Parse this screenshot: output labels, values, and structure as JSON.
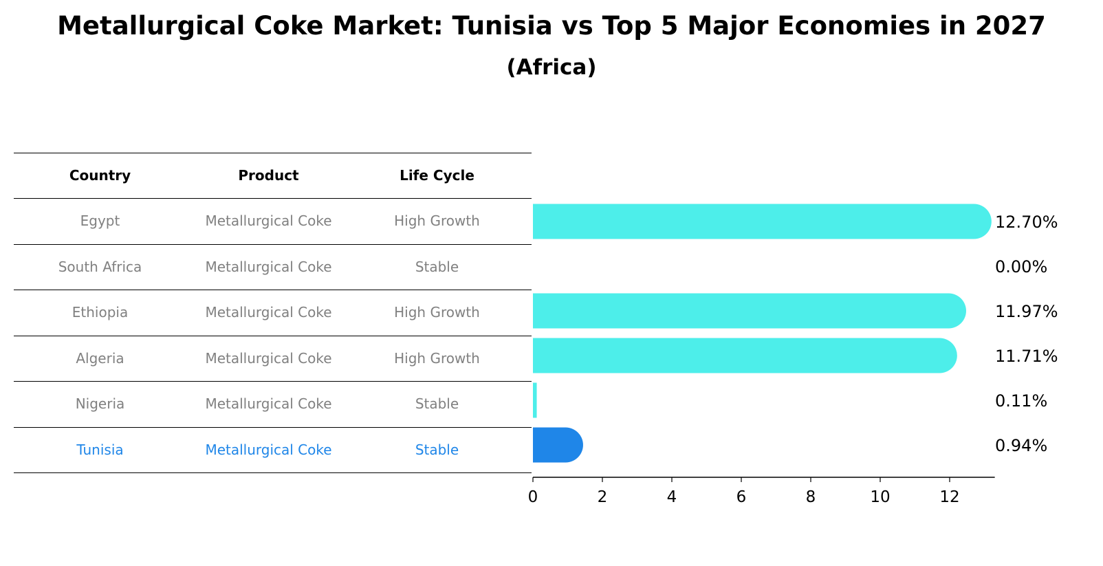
{
  "title": "Metallurgical Coke Market: Tunisia vs Top 5 Major Economies in 2027",
  "subtitle": "(Africa)",
  "table": {
    "headers": [
      "Country",
      "Product",
      "Life Cycle"
    ],
    "rows": [
      {
        "country": "Egypt",
        "product": "Metallurgical Coke",
        "life_cycle": "High Growth"
      },
      {
        "country": "South Africa",
        "product": "Metallurgical Coke",
        "life_cycle": "Stable"
      },
      {
        "country": "Ethiopia",
        "product": "Metallurgical Coke",
        "life_cycle": "High Growth"
      },
      {
        "country": "Algeria",
        "product": "Metallurgical Coke",
        "life_cycle": "High Growth"
      },
      {
        "country": "Nigeria",
        "product": "Metallurgical Coke",
        "life_cycle": "Stable"
      },
      {
        "country": "Tunisia",
        "product": "Metallurgical Coke",
        "life_cycle": "Stable"
      }
    ]
  },
  "colors": {
    "bar": "#4deeea",
    "highlight": "#1f86e8",
    "text_muted": "#808080"
  },
  "chart_data": {
    "type": "bar",
    "orientation": "horizontal",
    "categories": [
      "Egypt",
      "South Africa",
      "Ethiopia",
      "Algeria",
      "Nigeria",
      "Tunisia"
    ],
    "values": [
      12.7,
      0.0,
      11.97,
      11.71,
      0.11,
      0.94
    ],
    "value_labels": [
      "12.70%",
      "0.00%",
      "11.97%",
      "11.71%",
      "0.11%",
      "0.94%"
    ],
    "highlight": "Tunisia",
    "xlim": [
      0,
      13.3
    ],
    "xticks": [
      0,
      2,
      4,
      6,
      8,
      10,
      12
    ],
    "grid": false
  }
}
